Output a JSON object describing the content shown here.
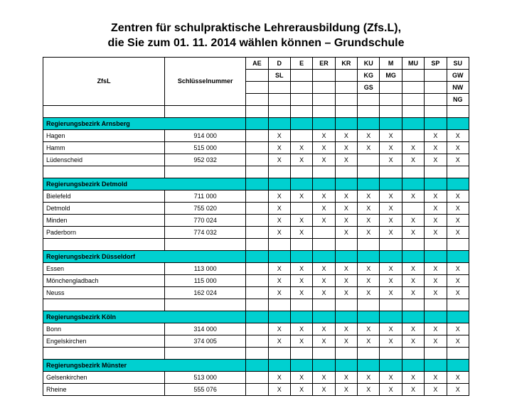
{
  "title_line1": "Zentren für schulpraktische Lehrerausbildung (Zfs.L),",
  "title_line2": "die Sie zum 01. 11. 2014 wählen können – Grundschule",
  "colors": {
    "region_header_bg": "#00d0d0",
    "border": "#000000",
    "background": "#ffffff",
    "text": "#000000"
  },
  "columns": {
    "name": "ZfsL",
    "key": "Schlüsselnummer",
    "subjects_row1": [
      "AE",
      "D",
      "E",
      "ER",
      "KR",
      "KU",
      "M",
      "MU",
      "SP",
      "SU"
    ],
    "subjects_row2": [
      "",
      "SL",
      "",
      "",
      "",
      "KG",
      "MG",
      "",
      "",
      "GW"
    ],
    "subjects_row3": [
      "",
      "",
      "",
      "",
      "",
      "GS",
      "",
      "",
      "",
      "NW"
    ],
    "subjects_row4": [
      "",
      "",
      "",
      "",
      "",
      "",
      "",
      "",
      "",
      "NG"
    ]
  },
  "regions": [
    {
      "name": "Regierungsbezirk Arnsberg",
      "rows": [
        {
          "name": "Hagen",
          "key": "914 000",
          "marks": [
            "",
            "X",
            "",
            "X",
            "X",
            "X",
            "X",
            "",
            "X",
            "X"
          ]
        },
        {
          "name": "Hamm",
          "key": "515 000",
          "marks": [
            "",
            "X",
            "X",
            "X",
            "X",
            "X",
            "X",
            "X",
            "X",
            "X"
          ]
        },
        {
          "name": "Lüdenscheid",
          "key": "952 032",
          "marks": [
            "",
            "X",
            "X",
            "X",
            "X",
            "",
            "X",
            "X",
            "X",
            "X"
          ]
        }
      ]
    },
    {
      "name": "Regierungsbezirk Detmold",
      "rows": [
        {
          "name": "Bielefeld",
          "key": "711 000",
          "marks": [
            "",
            "X",
            "X",
            "X",
            "X",
            "X",
            "X",
            "X",
            "X",
            "X"
          ]
        },
        {
          "name": "Detmold",
          "key": "755 020",
          "marks": [
            "",
            "X",
            "",
            "X",
            "X",
            "X",
            "X",
            "",
            "X",
            "X"
          ]
        },
        {
          "name": "Minden",
          "key": "770 024",
          "marks": [
            "",
            "X",
            "X",
            "X",
            "X",
            "X",
            "X",
            "X",
            "X",
            "X"
          ]
        },
        {
          "name": "Paderborn",
          "key": "774 032",
          "marks": [
            "",
            "X",
            "X",
            "",
            "X",
            "X",
            "X",
            "X",
            "X",
            "X"
          ]
        }
      ]
    },
    {
      "name": "Regierungsbezirk Düsseldorf",
      "rows": [
        {
          "name": "Essen",
          "key": "113 000",
          "marks": [
            "",
            "X",
            "X",
            "X",
            "X",
            "X",
            "X",
            "X",
            "X",
            "X"
          ]
        },
        {
          "name": "Mönchengladbach",
          "key": "115 000",
          "marks": [
            "",
            "X",
            "X",
            "X",
            "X",
            "X",
            "X",
            "X",
            "X",
            "X"
          ]
        },
        {
          "name": "Neuss",
          "key": "162 024",
          "marks": [
            "",
            "X",
            "X",
            "X",
            "X",
            "X",
            "X",
            "X",
            "X",
            "X"
          ]
        }
      ]
    },
    {
      "name": "Regierungsbezirk Köln",
      "rows": [
        {
          "name": "Bonn",
          "key": "314 000",
          "marks": [
            "",
            "X",
            "X",
            "X",
            "X",
            "X",
            "X",
            "X",
            "X",
            "X"
          ]
        },
        {
          "name": "Engelskirchen",
          "key": "374 005",
          "marks": [
            "",
            "X",
            "X",
            "X",
            "X",
            "X",
            "X",
            "X",
            "X",
            "X"
          ]
        }
      ]
    },
    {
      "name": "Regierungsbezirk Münster",
      "rows": [
        {
          "name": "Gelsenkirchen",
          "key": "513 000",
          "marks": [
            "",
            "X",
            "X",
            "X",
            "X",
            "X",
            "X",
            "X",
            "X",
            "X"
          ]
        },
        {
          "name": "Rheine",
          "key": "555 076",
          "marks": [
            "",
            "X",
            "X",
            "X",
            "X",
            "X",
            "X",
            "X",
            "X",
            "X"
          ]
        }
      ]
    }
  ]
}
